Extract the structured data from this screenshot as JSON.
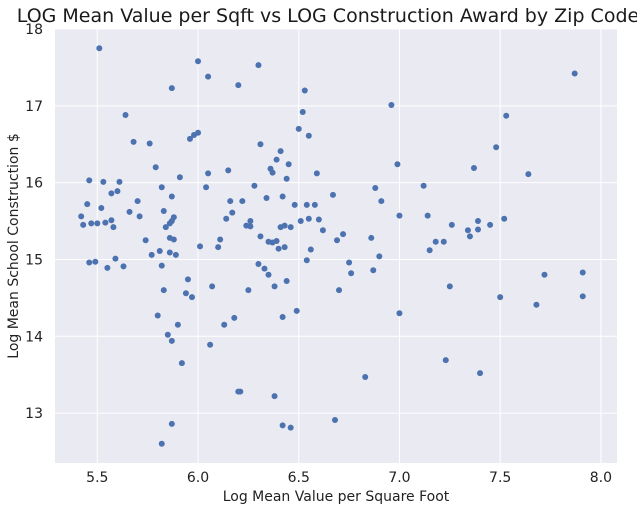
{
  "chart_data": {
    "type": "scatter",
    "title": "LOG Mean Value per Sqft vs LOG Construction Award by Zip Code",
    "xlabel": "Log Mean Value per Square Foot",
    "ylabel": "Log Mean School Construction $",
    "xlim": [
      5.29,
      8.08
    ],
    "ylim": [
      12.35,
      18.0
    ],
    "xticks": [
      5.5,
      6.0,
      6.5,
      7.0,
      7.5,
      8.0
    ],
    "xtick_labels": [
      "5.5",
      "6.0",
      "6.5",
      "7.0",
      "7.5",
      "8.0"
    ],
    "yticks": [
      13,
      14,
      15,
      16,
      17,
      18
    ],
    "ytick_labels": [
      "13",
      "14",
      "15",
      "16",
      "17",
      "18"
    ],
    "grid": true,
    "background_color": "#eaeaf2",
    "point_color": "#4c72b0",
    "points": [
      [
        5.51,
        17.75
      ],
      [
        5.42,
        15.56
      ],
      [
        5.43,
        15.45
      ],
      [
        5.45,
        15.72
      ],
      [
        5.46,
        16.03
      ],
      [
        5.47,
        15.47
      ],
      [
        5.5,
        15.47
      ],
      [
        5.52,
        15.67
      ],
      [
        5.53,
        16.01
      ],
      [
        5.54,
        15.48
      ],
      [
        5.46,
        14.96
      ],
      [
        5.49,
        14.97
      ],
      [
        5.55,
        14.89
      ],
      [
        5.57,
        15.51
      ],
      [
        5.57,
        15.86
      ],
      [
        5.58,
        15.42
      ],
      [
        5.59,
        15.01
      ],
      [
        5.6,
        15.89
      ],
      [
        5.61,
        16.01
      ],
      [
        5.63,
        14.91
      ],
      [
        5.64,
        16.88
      ],
      [
        5.66,
        15.62
      ],
      [
        5.68,
        16.53
      ],
      [
        5.7,
        15.76
      ],
      [
        5.71,
        15.56
      ],
      [
        5.74,
        15.25
      ],
      [
        5.76,
        16.51
      ],
      [
        5.77,
        15.06
      ],
      [
        5.79,
        16.2
      ],
      [
        5.8,
        14.27
      ],
      [
        5.81,
        15.11
      ],
      [
        5.82,
        15.94
      ],
      [
        5.82,
        14.92
      ],
      [
        5.83,
        15.63
      ],
      [
        5.83,
        14.6
      ],
      [
        5.84,
        15.42
      ],
      [
        5.85,
        14.02
      ],
      [
        5.86,
        15.47
      ],
      [
        5.86,
        15.09
      ],
      [
        5.86,
        15.28
      ],
      [
        5.87,
        17.23
      ],
      [
        5.87,
        15.82
      ],
      [
        5.87,
        15.5
      ],
      [
        5.87,
        13.94
      ],
      [
        5.88,
        15.26
      ],
      [
        5.88,
        15.55
      ],
      [
        5.89,
        15.06
      ],
      [
        5.9,
        14.15
      ],
      [
        5.91,
        16.07
      ],
      [
        5.92,
        13.65
      ],
      [
        5.94,
        14.56
      ],
      [
        5.95,
        14.74
      ],
      [
        5.96,
        16.57
      ],
      [
        5.97,
        14.51
      ],
      [
        5.98,
        16.62
      ],
      [
        6.0,
        16.65
      ],
      [
        6.0,
        17.58
      ],
      [
        6.01,
        15.17
      ],
      [
        6.04,
        15.94
      ],
      [
        6.05,
        17.38
      ],
      [
        6.05,
        16.12
      ],
      [
        6.06,
        13.89
      ],
      [
        6.07,
        14.65
      ],
      [
        6.1,
        15.16
      ],
      [
        6.11,
        15.26
      ],
      [
        6.13,
        14.15
      ],
      [
        6.14,
        15.53
      ],
      [
        6.15,
        16.16
      ],
      [
        6.16,
        15.76
      ],
      [
        6.17,
        15.61
      ],
      [
        6.18,
        14.24
      ],
      [
        6.2,
        17.27
      ],
      [
        6.2,
        13.28
      ],
      [
        6.21,
        13.28
      ],
      [
        6.22,
        15.76
      ],
      [
        6.24,
        15.44
      ],
      [
        6.25,
        14.6
      ],
      [
        6.26,
        15.43
      ],
      [
        6.26,
        15.5
      ],
      [
        6.28,
        15.96
      ],
      [
        6.3,
        17.53
      ],
      [
        6.3,
        14.94
      ],
      [
        6.31,
        16.5
      ],
      [
        6.31,
        15.3
      ],
      [
        6.33,
        14.88
      ],
      [
        6.34,
        15.8
      ],
      [
        6.35,
        15.23
      ],
      [
        6.35,
        14.8
      ],
      [
        6.36,
        16.18
      ],
      [
        6.37,
        15.22
      ],
      [
        6.37,
        16.13
      ],
      [
        6.38,
        14.65
      ],
      [
        6.38,
        13.22
      ],
      [
        6.39,
        16.3
      ],
      [
        6.39,
        15.24
      ],
      [
        6.4,
        15.14
      ],
      [
        6.41,
        16.41
      ],
      [
        6.41,
        15.42
      ],
      [
        6.42,
        14.25
      ],
      [
        6.42,
        15.82
      ],
      [
        6.42,
        12.84
      ],
      [
        6.43,
        15.44
      ],
      [
        6.43,
        15.16
      ],
      [
        6.44,
        16.05
      ],
      [
        6.44,
        14.72
      ],
      [
        6.45,
        16.24
      ],
      [
        6.46,
        12.81
      ],
      [
        6.46,
        15.42
      ],
      [
        6.48,
        15.71
      ],
      [
        6.49,
        14.33
      ],
      [
        6.5,
        16.7
      ],
      [
        6.51,
        15.5
      ],
      [
        6.52,
        16.92
      ],
      [
        6.53,
        17.2
      ],
      [
        6.54,
        15.71
      ],
      [
        6.54,
        14.99
      ],
      [
        6.55,
        16.61
      ],
      [
        6.55,
        15.53
      ],
      [
        6.56,
        15.13
      ],
      [
        6.58,
        15.71
      ],
      [
        6.59,
        16.12
      ],
      [
        6.6,
        15.52
      ],
      [
        6.62,
        15.38
      ],
      [
        6.67,
        15.84
      ],
      [
        6.68,
        12.91
      ],
      [
        6.69,
        15.25
      ],
      [
        6.7,
        14.6
      ],
      [
        6.72,
        15.33
      ],
      [
        6.75,
        14.96
      ],
      [
        6.76,
        14.82
      ],
      [
        6.83,
        13.47
      ],
      [
        6.86,
        15.28
      ],
      [
        6.87,
        14.86
      ],
      [
        6.88,
        15.93
      ],
      [
        6.9,
        15.04
      ],
      [
        6.91,
        15.76
      ],
      [
        6.96,
        17.01
      ],
      [
        6.99,
        16.24
      ],
      [
        7.0,
        15.57
      ],
      [
        7.0,
        14.3
      ],
      [
        7.12,
        15.96
      ],
      [
        7.14,
        15.57
      ],
      [
        7.15,
        15.12
      ],
      [
        7.18,
        15.23
      ],
      [
        7.22,
        15.23
      ],
      [
        7.23,
        13.69
      ],
      [
        7.25,
        14.65
      ],
      [
        7.26,
        15.45
      ],
      [
        7.34,
        15.38
      ],
      [
        7.35,
        15.3
      ],
      [
        7.37,
        16.19
      ],
      [
        7.39,
        15.5
      ],
      [
        7.39,
        15.39
      ],
      [
        7.4,
        13.52
      ],
      [
        7.45,
        15.45
      ],
      [
        7.48,
        16.46
      ],
      [
        7.5,
        14.51
      ],
      [
        7.52,
        15.53
      ],
      [
        7.53,
        16.87
      ],
      [
        7.64,
        16.11
      ],
      [
        7.68,
        14.41
      ],
      [
        7.72,
        14.8
      ],
      [
        7.87,
        17.42
      ],
      [
        7.91,
        14.83
      ],
      [
        7.91,
        14.52
      ],
      [
        5.82,
        12.6
      ],
      [
        5.87,
        12.86
      ]
    ]
  }
}
